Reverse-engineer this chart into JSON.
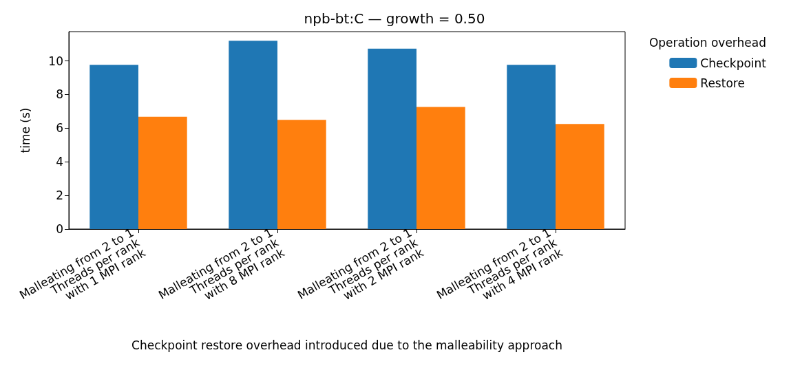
{
  "chart_data": {
    "type": "bar",
    "title": "npb-bt:C — growth = 0.50",
    "xlabel": "Checkpoint restore overhead introduced due to the malleability approach",
    "ylabel": "time (s)",
    "legend_title": "Operation overhead",
    "categories": [
      "Malleating from 2 to 1\nThreads per rank\nwith 1 MPI rank",
      "Malleating from 2 to 1\nThreads per rank\nwith 8 MPI rank",
      "Malleating from 2 to 1\nThreads per rank\nwith 2 MPI rank",
      "Malleating from 2 to 1\nThreads per rank\nwith 4 MPI rank"
    ],
    "series": [
      {
        "name": "Checkpoint",
        "color": "#1f77b4",
        "values": [
          9.77,
          11.2,
          10.73,
          9.77
        ]
      },
      {
        "name": "Restore",
        "color": "#ff7f0e",
        "values": [
          6.68,
          6.49,
          7.26,
          6.25
        ]
      }
    ],
    "ylim": [
      0,
      11.74
    ],
    "yticks": [
      0,
      2,
      4,
      6,
      8,
      10
    ],
    "grid": false,
    "legend": "right"
  }
}
